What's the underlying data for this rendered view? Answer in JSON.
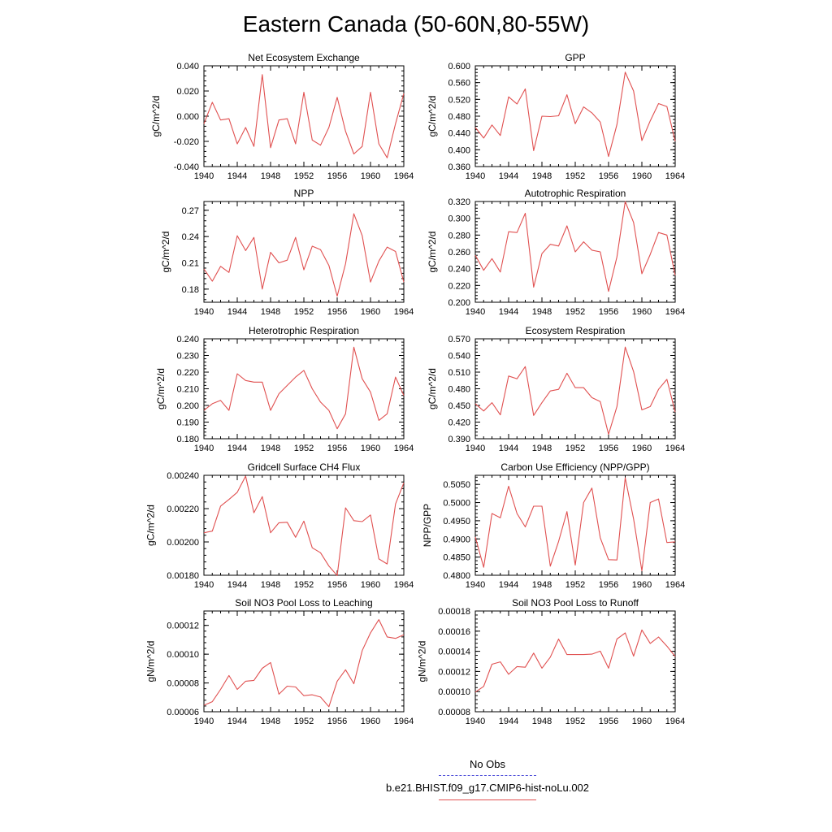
{
  "title": "Eastern Canada (50-60N,80-55W)",
  "legend": {
    "obs_label": "No Obs",
    "obs_color": "#4a4ad8",
    "run_label": "b.e21.BHIST.f09_g17.CMIP6-hist-noLu.002",
    "run_color": "#e05050"
  },
  "chart_data": [
    {
      "type": "line",
      "title": "Net Ecosystem Exchange",
      "ylabel": "gC/m^2/d",
      "ylim": [
        -0.04,
        0.04
      ],
      "yticks": [
        "-0.040",
        "-0.020",
        "0.000",
        "0.020",
        "0.040"
      ],
      "xlim": [
        1940,
        1964
      ],
      "xticks": [
        "1940",
        "1944",
        "1948",
        "1952",
        "1956",
        "1960",
        "1964"
      ],
      "x": [
        1940,
        1941,
        1942,
        1943,
        1944,
        1945,
        1946,
        1947,
        1948,
        1949,
        1950,
        1951,
        1952,
        1953,
        1954,
        1955,
        1956,
        1957,
        1958,
        1959,
        1960,
        1961,
        1962,
        1963,
        1964
      ],
      "series": [
        {
          "values": [
            -0.006,
            0.011,
            -0.003,
            -0.002,
            -0.022,
            -0.009,
            -0.024,
            0.033,
            -0.025,
            -0.003,
            -0.002,
            -0.022,
            0.019,
            -0.019,
            -0.023,
            -0.009,
            0.015,
            -0.012,
            -0.03,
            -0.024,
            0.019,
            -0.022,
            -0.033,
            -0.006,
            0.018
          ]
        }
      ]
    },
    {
      "type": "line",
      "title": "GPP",
      "ylabel": "gC/m^2/d",
      "ylim": [
        0.36,
        0.6
      ],
      "yticks": [
        "0.360",
        "0.400",
        "0.440",
        "0.480",
        "0.520",
        "0.560",
        "0.600"
      ],
      "xlim": [
        1940,
        1964
      ],
      "xticks": [
        "1940",
        "1944",
        "1948",
        "1952",
        "1956",
        "1960",
        "1964"
      ],
      "x": [
        1940,
        1941,
        1942,
        1943,
        1944,
        1945,
        1946,
        1947,
        1948,
        1949,
        1950,
        1951,
        1952,
        1953,
        1954,
        1955,
        1956,
        1957,
        1958,
        1959,
        1960,
        1961,
        1962,
        1963,
        1964
      ],
      "series": [
        {
          "values": [
            0.453,
            0.428,
            0.459,
            0.434,
            0.526,
            0.509,
            0.545,
            0.398,
            0.48,
            0.479,
            0.481,
            0.531,
            0.462,
            0.502,
            0.488,
            0.466,
            0.384,
            0.46,
            0.585,
            0.54,
            0.422,
            0.469,
            0.51,
            0.503,
            0.42
          ]
        }
      ]
    },
    {
      "type": "line",
      "title": "NPP",
      "ylabel": "gC/m^2/d",
      "ylim": [
        0.165,
        0.28
      ],
      "yticks": [
        "0.18",
        "0.21",
        "0.24",
        "0.27"
      ],
      "xlim": [
        1940,
        1964
      ],
      "xticks": [
        "1940",
        "1944",
        "1948",
        "1952",
        "1956",
        "1960",
        "1964"
      ],
      "x": [
        1940,
        1941,
        1942,
        1943,
        1944,
        1945,
        1946,
        1947,
        1948,
        1949,
        1950,
        1951,
        1952,
        1953,
        1954,
        1955,
        1956,
        1957,
        1958,
        1959,
        1960,
        1961,
        1962,
        1963,
        1964
      ],
      "series": [
        {
          "values": [
            0.203,
            0.189,
            0.206,
            0.199,
            0.241,
            0.224,
            0.239,
            0.18,
            0.222,
            0.21,
            0.213,
            0.239,
            0.202,
            0.229,
            0.225,
            0.207,
            0.172,
            0.209,
            0.266,
            0.241,
            0.188,
            0.212,
            0.228,
            0.223,
            0.188
          ]
        }
      ]
    },
    {
      "type": "line",
      "title": "Autotrophic Respiration",
      "ylabel": "gC/m^2/d",
      "ylim": [
        0.2,
        0.32
      ],
      "yticks": [
        "0.200",
        "0.220",
        "0.240",
        "0.260",
        "0.280",
        "0.300",
        "0.320"
      ],
      "xlim": [
        1940,
        1964
      ],
      "xticks": [
        "1940",
        "1944",
        "1948",
        "1952",
        "1956",
        "1960",
        "1964"
      ],
      "x": [
        1940,
        1941,
        1942,
        1943,
        1944,
        1945,
        1946,
        1947,
        1948,
        1949,
        1950,
        1951,
        1952,
        1953,
        1954,
        1955,
        1956,
        1957,
        1958,
        1959,
        1960,
        1961,
        1962,
        1963,
        1964
      ],
      "series": [
        {
          "values": [
            0.256,
            0.238,
            0.252,
            0.236,
            0.284,
            0.283,
            0.306,
            0.218,
            0.258,
            0.269,
            0.267,
            0.291,
            0.26,
            0.272,
            0.262,
            0.26,
            0.213,
            0.254,
            0.32,
            0.295,
            0.234,
            0.257,
            0.283,
            0.28,
            0.232
          ]
        }
      ]
    },
    {
      "type": "line",
      "title": "Heterotrophic Respiration",
      "ylabel": "gC/m^2/d",
      "ylim": [
        0.18,
        0.24
      ],
      "yticks": [
        "0.180",
        "0.190",
        "0.200",
        "0.210",
        "0.220",
        "0.230",
        "0.240"
      ],
      "xlim": [
        1940,
        1964
      ],
      "xticks": [
        "1940",
        "1944",
        "1948",
        "1952",
        "1956",
        "1960",
        "1964"
      ],
      "x": [
        1940,
        1941,
        1942,
        1943,
        1944,
        1945,
        1946,
        1947,
        1948,
        1949,
        1950,
        1951,
        1952,
        1953,
        1954,
        1955,
        1956,
        1957,
        1958,
        1959,
        1960,
        1961,
        1962,
        1963,
        1964
      ],
      "series": [
        {
          "values": [
            0.197,
            0.201,
            0.203,
            0.197,
            0.219,
            0.215,
            0.214,
            0.214,
            0.197,
            0.207,
            0.212,
            0.217,
            0.221,
            0.21,
            0.202,
            0.197,
            0.186,
            0.195,
            0.235,
            0.216,
            0.208,
            0.191,
            0.195,
            0.217,
            0.206
          ]
        }
      ]
    },
    {
      "type": "line",
      "title": "Ecosystem Respiration",
      "ylabel": "gC/m^2/d",
      "ylim": [
        0.39,
        0.57
      ],
      "yticks": [
        "0.390",
        "0.420",
        "0.450",
        "0.480",
        "0.510",
        "0.540",
        "0.570"
      ],
      "xlim": [
        1940,
        1964
      ],
      "xticks": [
        "1940",
        "1944",
        "1948",
        "1952",
        "1956",
        "1960",
        "1964"
      ],
      "x": [
        1940,
        1941,
        1942,
        1943,
        1944,
        1945,
        1946,
        1947,
        1948,
        1949,
        1950,
        1951,
        1952,
        1953,
        1954,
        1955,
        1956,
        1957,
        1958,
        1959,
        1960,
        1961,
        1962,
        1963,
        1964
      ],
      "series": [
        {
          "values": [
            0.453,
            0.44,
            0.455,
            0.433,
            0.503,
            0.498,
            0.52,
            0.432,
            0.455,
            0.476,
            0.479,
            0.508,
            0.482,
            0.482,
            0.464,
            0.457,
            0.398,
            0.448,
            0.555,
            0.511,
            0.442,
            0.448,
            0.479,
            0.497,
            0.438
          ]
        }
      ]
    },
    {
      "type": "line",
      "title": "Gridcell Surface CH4 Flux",
      "ylabel": "gC/m^2/d",
      "ylim": [
        0.0018,
        0.0024
      ],
      "yticks": [
        "0.00180",
        "0.00200",
        "0.00220",
        "0.00240"
      ],
      "xlim": [
        1940,
        1964
      ],
      "xticks": [
        "1940",
        "1944",
        "1948",
        "1952",
        "1956",
        "1960",
        "1964"
      ],
      "x": [
        1940,
        1941,
        1942,
        1943,
        1944,
        1945,
        1946,
        1947,
        1948,
        1949,
        1950,
        1951,
        1952,
        1953,
        1954,
        1955,
        1956,
        1957,
        1958,
        1959,
        1960,
        1961,
        1962,
        1963,
        1964
      ],
      "series": [
        {
          "values": [
            0.002055,
            0.002065,
            0.002215,
            0.002255,
            0.002298,
            0.002395,
            0.002175,
            0.002272,
            0.002055,
            0.002115,
            0.002118,
            0.002028,
            0.002125,
            0.001965,
            0.001935,
            0.001855,
            0.001798,
            0.002205,
            0.002128,
            0.002122,
            0.002162,
            0.001898,
            0.001868,
            0.002228,
            0.002355
          ]
        }
      ]
    },
    {
      "type": "line",
      "title": "Carbon Use Efficiency (NPP/GPP)",
      "ylabel": "NPP/GPP",
      "ylim": [
        0.48,
        0.5075
      ],
      "yticks": [
        "0.4800",
        "0.4850",
        "0.4900",
        "0.4950",
        "0.5000",
        "0.5050"
      ],
      "xlim": [
        1940,
        1964
      ],
      "xticks": [
        "1940",
        "1944",
        "1948",
        "1952",
        "1956",
        "1960",
        "1964"
      ],
      "x": [
        1940,
        1941,
        1942,
        1943,
        1944,
        1945,
        1946,
        1947,
        1948,
        1949,
        1950,
        1951,
        1952,
        1953,
        1954,
        1955,
        1956,
        1957,
        1958,
        1959,
        1960,
        1961,
        1962,
        1963,
        1964
      ],
      "series": [
        {
          "values": [
            0.4905,
            0.4822,
            0.497,
            0.4958,
            0.5045,
            0.497,
            0.4933,
            0.499,
            0.499,
            0.4825,
            0.4893,
            0.4975,
            0.4828,
            0.5,
            0.504,
            0.4903,
            0.4843,
            0.4842,
            0.5068,
            0.4955,
            0.4812,
            0.5,
            0.501,
            0.489,
            0.4892
          ]
        }
      ]
    },
    {
      "type": "line",
      "title": "Soil NO3 Pool Loss to Leaching",
      "ylabel": "gN/m^2/d",
      "ylim": [
        6e-05,
        0.00013
      ],
      "yticks": [
        "0.00006",
        "0.00008",
        "0.00010",
        "0.00012"
      ],
      "xlim": [
        1940,
        1964
      ],
      "xticks": [
        "1940",
        "1944",
        "1948",
        "1952",
        "1956",
        "1960",
        "1964"
      ],
      "x": [
        1940,
        1941,
        1942,
        1943,
        1944,
        1945,
        1946,
        1947,
        1948,
        1949,
        1950,
        1951,
        1952,
        1953,
        1954,
        1955,
        1956,
        1957,
        1958,
        1959,
        1960,
        1961,
        1962,
        1963,
        1964
      ],
      "series": [
        {
          "values": [
            6.45e-05,
            6.7e-05,
            7.55e-05,
            8.52e-05,
            7.55e-05,
            8.12e-05,
            8.18e-05,
            9.02e-05,
            9.42e-05,
            7.22e-05,
            7.78e-05,
            7.72e-05,
            7.12e-05,
            7.18e-05,
            7.02e-05,
            6.35e-05,
            8.12e-05,
            8.92e-05,
            7.95e-05,
            0.0001025,
            0.0001148,
            0.000124,
            0.000112,
            0.000111,
            0.0001135
          ]
        }
      ]
    },
    {
      "type": "line",
      "title": "Soil NO3 Pool Loss to Runoff",
      "ylabel": "gN/m^2/d",
      "ylim": [
        8e-05,
        0.00018
      ],
      "yticks": [
        "0.00008",
        "0.00010",
        "0.00012",
        "0.00014",
        "0.00016",
        "0.00018"
      ],
      "xlim": [
        1940,
        1964
      ],
      "xticks": [
        "1940",
        "1944",
        "1948",
        "1952",
        "1956",
        "1960",
        "1964"
      ],
      "x": [
        1940,
        1941,
        1942,
        1943,
        1944,
        1945,
        1946,
        1947,
        1948,
        1949,
        1950,
        1951,
        1952,
        1953,
        1954,
        1955,
        1956,
        1957,
        1958,
        1959,
        1960,
        1961,
        1962,
        1963,
        1964
      ],
      "series": [
        {
          "values": [
            9.95e-05,
            0.0001052,
            0.0001272,
            0.0001295,
            0.0001172,
            0.0001248,
            0.0001242,
            0.0001382,
            0.0001232,
            0.0001342,
            0.0001522,
            0.0001368,
            0.0001368,
            0.0001368,
            0.0001372,
            0.0001402,
            0.0001232,
            0.0001522,
            0.0001582,
            0.0001352,
            0.0001612,
            0.0001478,
            0.0001542,
            0.0001452,
            0.0001348
          ]
        }
      ]
    }
  ]
}
